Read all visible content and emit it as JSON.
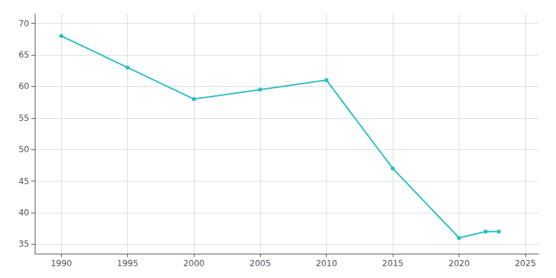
{
  "chart_data": {
    "type": "line",
    "x": [
      1990,
      1995,
      2000,
      2005,
      2010,
      2015,
      2020,
      2022,
      2023
    ],
    "values": [
      68,
      63,
      58,
      59.5,
      61,
      47,
      36,
      37,
      37
    ],
    "color": "#29bfbf",
    "marker": "circle",
    "xlim": [
      1988,
      2026
    ],
    "xticks": [
      1990,
      1995,
      2000,
      2005,
      2010,
      2015,
      2020,
      2025
    ],
    "ylim": [
      33.5,
      71.5
    ],
    "yticks": [
      35,
      40,
      45,
      50,
      55,
      60,
      65,
      70
    ],
    "grid": true
  }
}
